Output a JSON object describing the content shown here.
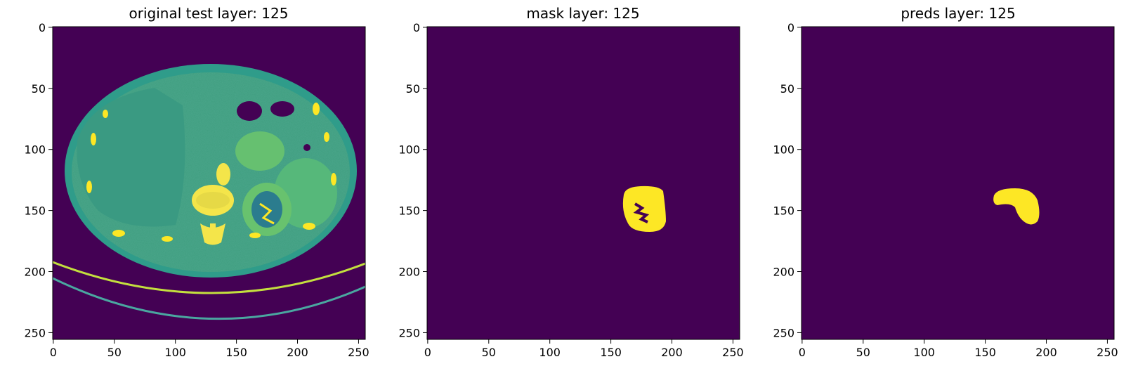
{
  "figure": {
    "panels": [
      {
        "title": "original test layer: 125",
        "image": "ct-axial-slice-abdomen",
        "xlim": [
          0,
          255
        ],
        "ylim": [
          255,
          0
        ],
        "xticks": [
          "0",
          "50",
          "100",
          "150",
          "200",
          "250"
        ],
        "yticks": [
          "0",
          "50",
          "100",
          "150",
          "200",
          "250"
        ]
      },
      {
        "title": "mask layer: 125",
        "image": "kidney-mask",
        "xlim": [
          0,
          255
        ],
        "ylim": [
          255,
          0
        ],
        "xticks": [
          "0",
          "50",
          "100",
          "150",
          "200",
          "250"
        ],
        "yticks": [
          "0",
          "50",
          "100",
          "150",
          "200",
          "250"
        ]
      },
      {
        "title": "preds layer: 125",
        "image": "kidney-prediction",
        "xlim": [
          0,
          255
        ],
        "ylim": [
          255,
          0
        ],
        "xticks": [
          "0",
          "50",
          "100",
          "150",
          "200",
          "250"
        ],
        "yticks": [
          "0",
          "50",
          "100",
          "150",
          "200",
          "250"
        ]
      }
    ],
    "colors": {
      "background": "#440154",
      "low": "#2b7c8e",
      "mid": "#3fb47c",
      "high": "#fde725",
      "tissue": "#3a9e83"
    }
  }
}
